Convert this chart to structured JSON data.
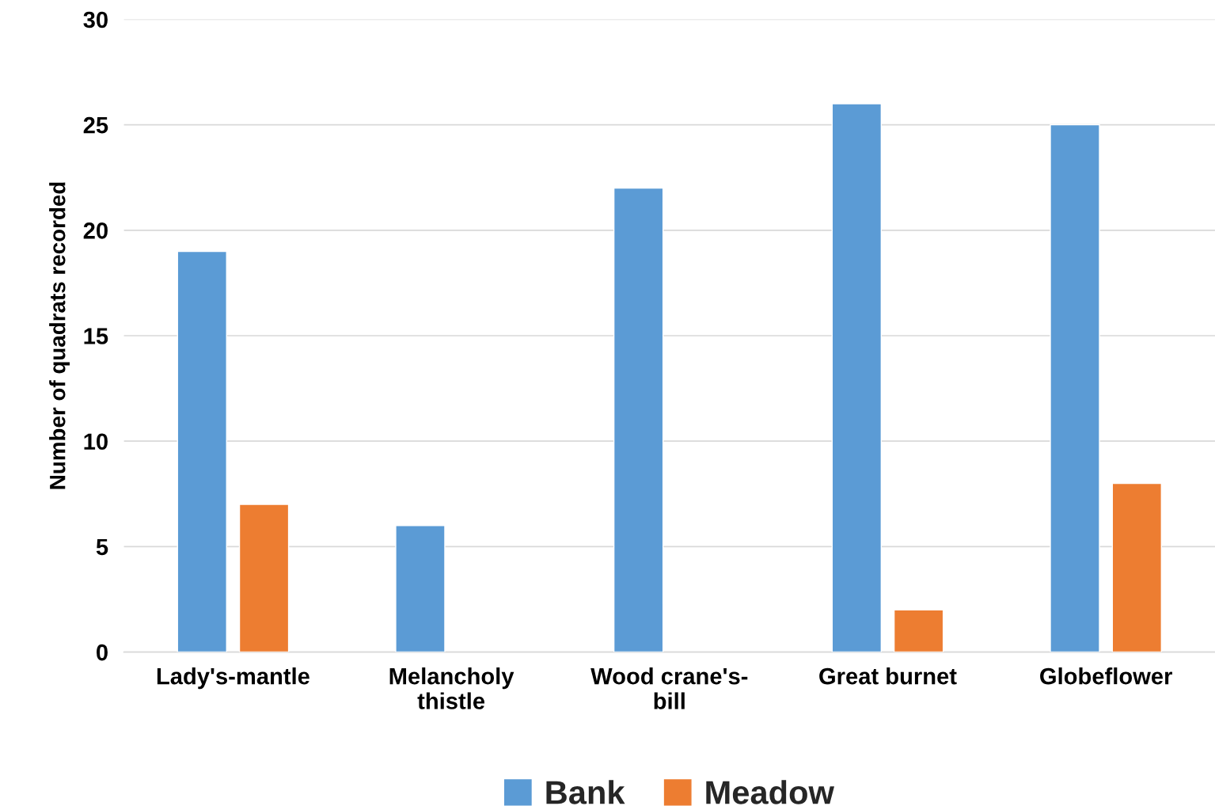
{
  "chart_data": {
    "type": "bar",
    "ylabel": "Number of quadrats recorded",
    "categories": [
      "Lady's-mantle",
      "Melancholy\nthistle",
      "Wood crane's-\nbill",
      "Great burnet",
      "Globeflower"
    ],
    "series": [
      {
        "name": "Bank",
        "color": "#5b9bd5",
        "values": [
          19,
          6,
          22,
          26,
          25
        ]
      },
      {
        "name": "Meadow",
        "color": "#ed7d31",
        "values": [
          7,
          null,
          null,
          2,
          8
        ]
      }
    ],
    "ylim": [
      0,
      30
    ],
    "yticks": [
      0,
      5,
      10,
      15,
      20,
      25,
      30
    ],
    "grid": "y",
    "legend": "bottom"
  }
}
